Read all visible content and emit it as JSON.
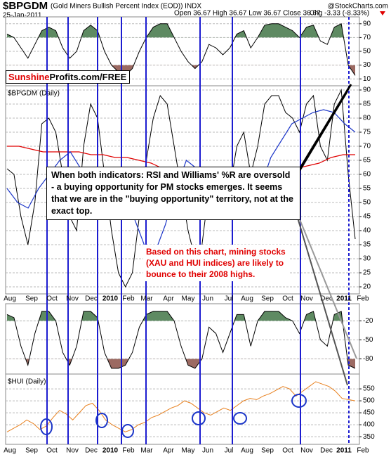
{
  "header": {
    "symbol": "$BPGDM",
    "name": "(Gold Miners Bullish Percent Index (EOD)) INDX",
    "date": "25-Jan-2011",
    "source": "@StockCharts.com",
    "quote": "Open 36.67 High 36.67 Low 36.67 Close 36.67",
    "change": "Chg -3.33 (-8.33%)"
  },
  "watermark": {
    "brand": "Sunshine",
    "rest": "Profits.com/FREE"
  },
  "annotations": [
    "When both indicators: RSI and Williams' %R are oversold - a buying opportunity for PM stocks emerges. It seems that we are in the \"buying opportunity\" territory, not at the exact top.",
    "Based on this chart, mining stocks (XAU and HUI indices) are likely to bounce to their 2008 highs."
  ],
  "x_axis": {
    "labels": [
      "Aug",
      "Sep",
      "Oct",
      "Nov",
      "Dec",
      "2010",
      "Feb",
      "Mar",
      "Apr",
      "May",
      "Jun",
      "Jul",
      "Aug",
      "Sep",
      "Oct",
      "Nov",
      "Dec",
      "2011",
      "Feb"
    ]
  },
  "chart_data": [
    {
      "type": "line",
      "ylim": [
        0,
        100
      ],
      "yticks": [
        90,
        70,
        50,
        30,
        10
      ],
      "grid": true,
      "upper_level": 70,
      "lower_level": 30,
      "fill_colors": [
        "#5e8a62",
        "#9c6a62"
      ],
      "series": [
        {
          "color": "#000000",
          "values": [
            75,
            70,
            55,
            40,
            60,
            80,
            85,
            80,
            55,
            40,
            50,
            80,
            88,
            80,
            50,
            30,
            20,
            15,
            25,
            50,
            70,
            85,
            90,
            90,
            70,
            50,
            35,
            25,
            35,
            60,
            55,
            45,
            55,
            75,
            80,
            55,
            70,
            88,
            90,
            90,
            85,
            80,
            70,
            85,
            88,
            65,
            60,
            85,
            90,
            30,
            15
          ]
        }
      ]
    },
    {
      "type": "line",
      "label": "$BPGDM (Daily)",
      "ylim": [
        17.5,
        91.5
      ],
      "yticks": [
        90,
        85,
        80,
        75,
        70,
        65,
        60,
        55,
        50,
        45,
        40,
        35,
        30,
        25,
        20
      ],
      "grid": true,
      "series": [
        {
          "color": "#000000",
          "values": [
            62,
            60,
            45,
            35,
            50,
            78,
            80,
            75,
            60,
            45,
            40,
            70,
            85,
            80,
            60,
            40,
            25,
            20,
            25,
            45,
            65,
            80,
            88,
            85,
            70,
            55,
            40,
            30,
            35,
            55,
            60,
            52,
            55,
            70,
            75,
            60,
            70,
            85,
            88,
            88,
            82,
            80,
            75,
            85,
            88,
            70,
            65,
            85,
            90,
            60,
            37
          ]
        },
        {
          "color": "#e00000",
          "values": [
            70,
            70,
            69,
            68,
            68,
            68,
            68,
            67,
            67,
            66,
            66,
            65,
            64,
            62,
            60,
            59,
            58,
            57,
            56,
            55,
            55,
            56,
            58,
            60,
            62,
            63,
            64,
            66,
            67,
            67
          ]
        },
        {
          "color": "#1c36c8",
          "values": [
            55,
            50,
            48,
            55,
            60,
            65,
            68,
            62,
            55,
            58,
            62,
            55,
            45,
            35,
            32,
            42,
            55,
            65,
            62,
            48,
            45,
            58,
            60,
            52,
            55,
            66,
            72,
            78,
            80,
            82,
            83,
            82,
            78,
            75
          ]
        }
      ]
    },
    {
      "type": "line",
      "ylim": [
        -104,
        7
      ],
      "yticks": [
        -20,
        -50,
        -80
      ],
      "grid": true,
      "upper_level": -20,
      "lower_level": -80,
      "fill_colors": [
        "#5e8a62",
        "#9c6a62"
      ],
      "series": [
        {
          "color": "#000000",
          "values": [
            -10,
            -15,
            -60,
            -90,
            -40,
            -5,
            -5,
            -20,
            -70,
            -90,
            -60,
            -5,
            -5,
            -15,
            -70,
            -95,
            -95,
            -90,
            -70,
            -30,
            -10,
            -5,
            -5,
            -5,
            -20,
            -60,
            -90,
            -95,
            -80,
            -30,
            -40,
            -70,
            -40,
            -10,
            -10,
            -60,
            -20,
            -5,
            -5,
            -5,
            -15,
            -20,
            -40,
            -10,
            -5,
            -50,
            -60,
            -10,
            -5,
            -90,
            -95
          ]
        }
      ]
    },
    {
      "type": "line",
      "label": "$HUI (Daily)",
      "ylim": [
        318,
        612
      ],
      "yticks": [
        550,
        500,
        450,
        400,
        350
      ],
      "grid": true,
      "series": [
        {
          "color": "#e8801e",
          "values": [
            370,
            385,
            400,
            420,
            405,
            380,
            395,
            430,
            460,
            445,
            420,
            450,
            480,
            490,
            460,
            420,
            400,
            385,
            370,
            380,
            400,
            410,
            430,
            440,
            455,
            470,
            480,
            500,
            490,
            470,
            450,
            440,
            455,
            470,
            460,
            480,
            500,
            510,
            505,
            520,
            530,
            545,
            560,
            550,
            520,
            540,
            560,
            580,
            570,
            560,
            540,
            510,
            505,
            500
          ]
        }
      ]
    }
  ]
}
